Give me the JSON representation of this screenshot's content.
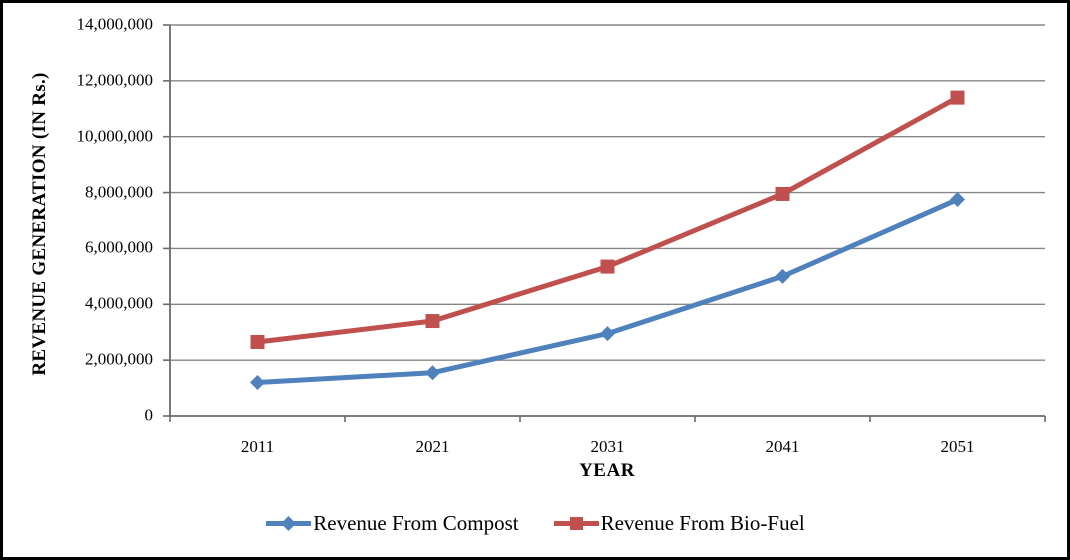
{
  "chart_data": {
    "type": "line",
    "title": "",
    "xlabel": "YEAR",
    "ylabel": "REVENUE GENERATION (IN Rs.)",
    "categories": [
      "2011",
      "2021",
      "2031",
      "2041",
      "2051"
    ],
    "series": [
      {
        "name": "Revenue From Compost",
        "color": "#4F81BD",
        "marker": "diamond",
        "values": [
          1200000,
          1550000,
          2950000,
          5000000,
          7750000
        ]
      },
      {
        "name": "Revenue From Bio-Fuel",
        "color": "#C0504D",
        "marker": "square",
        "values": [
          2650000,
          3400000,
          5350000,
          7950000,
          11400000
        ]
      }
    ],
    "ylim": [
      0,
      14000000
    ],
    "y_tick_values": [
      0,
      2000000,
      4000000,
      6000000,
      8000000,
      10000000,
      12000000,
      14000000
    ],
    "y_tick_labels": [
      "0",
      "2,000,000",
      "4,000,000",
      "6,000,000",
      "8,000,000",
      "10,000,000",
      "12,000,000",
      "14,000,000"
    ],
    "grid": "horizontal",
    "legend_position": "bottom-center"
  },
  "colors": {
    "background": "#FFFFFF",
    "frame": "#000000",
    "gridline": "#868686",
    "axis": "#6A6A6A",
    "text": "#000000"
  }
}
